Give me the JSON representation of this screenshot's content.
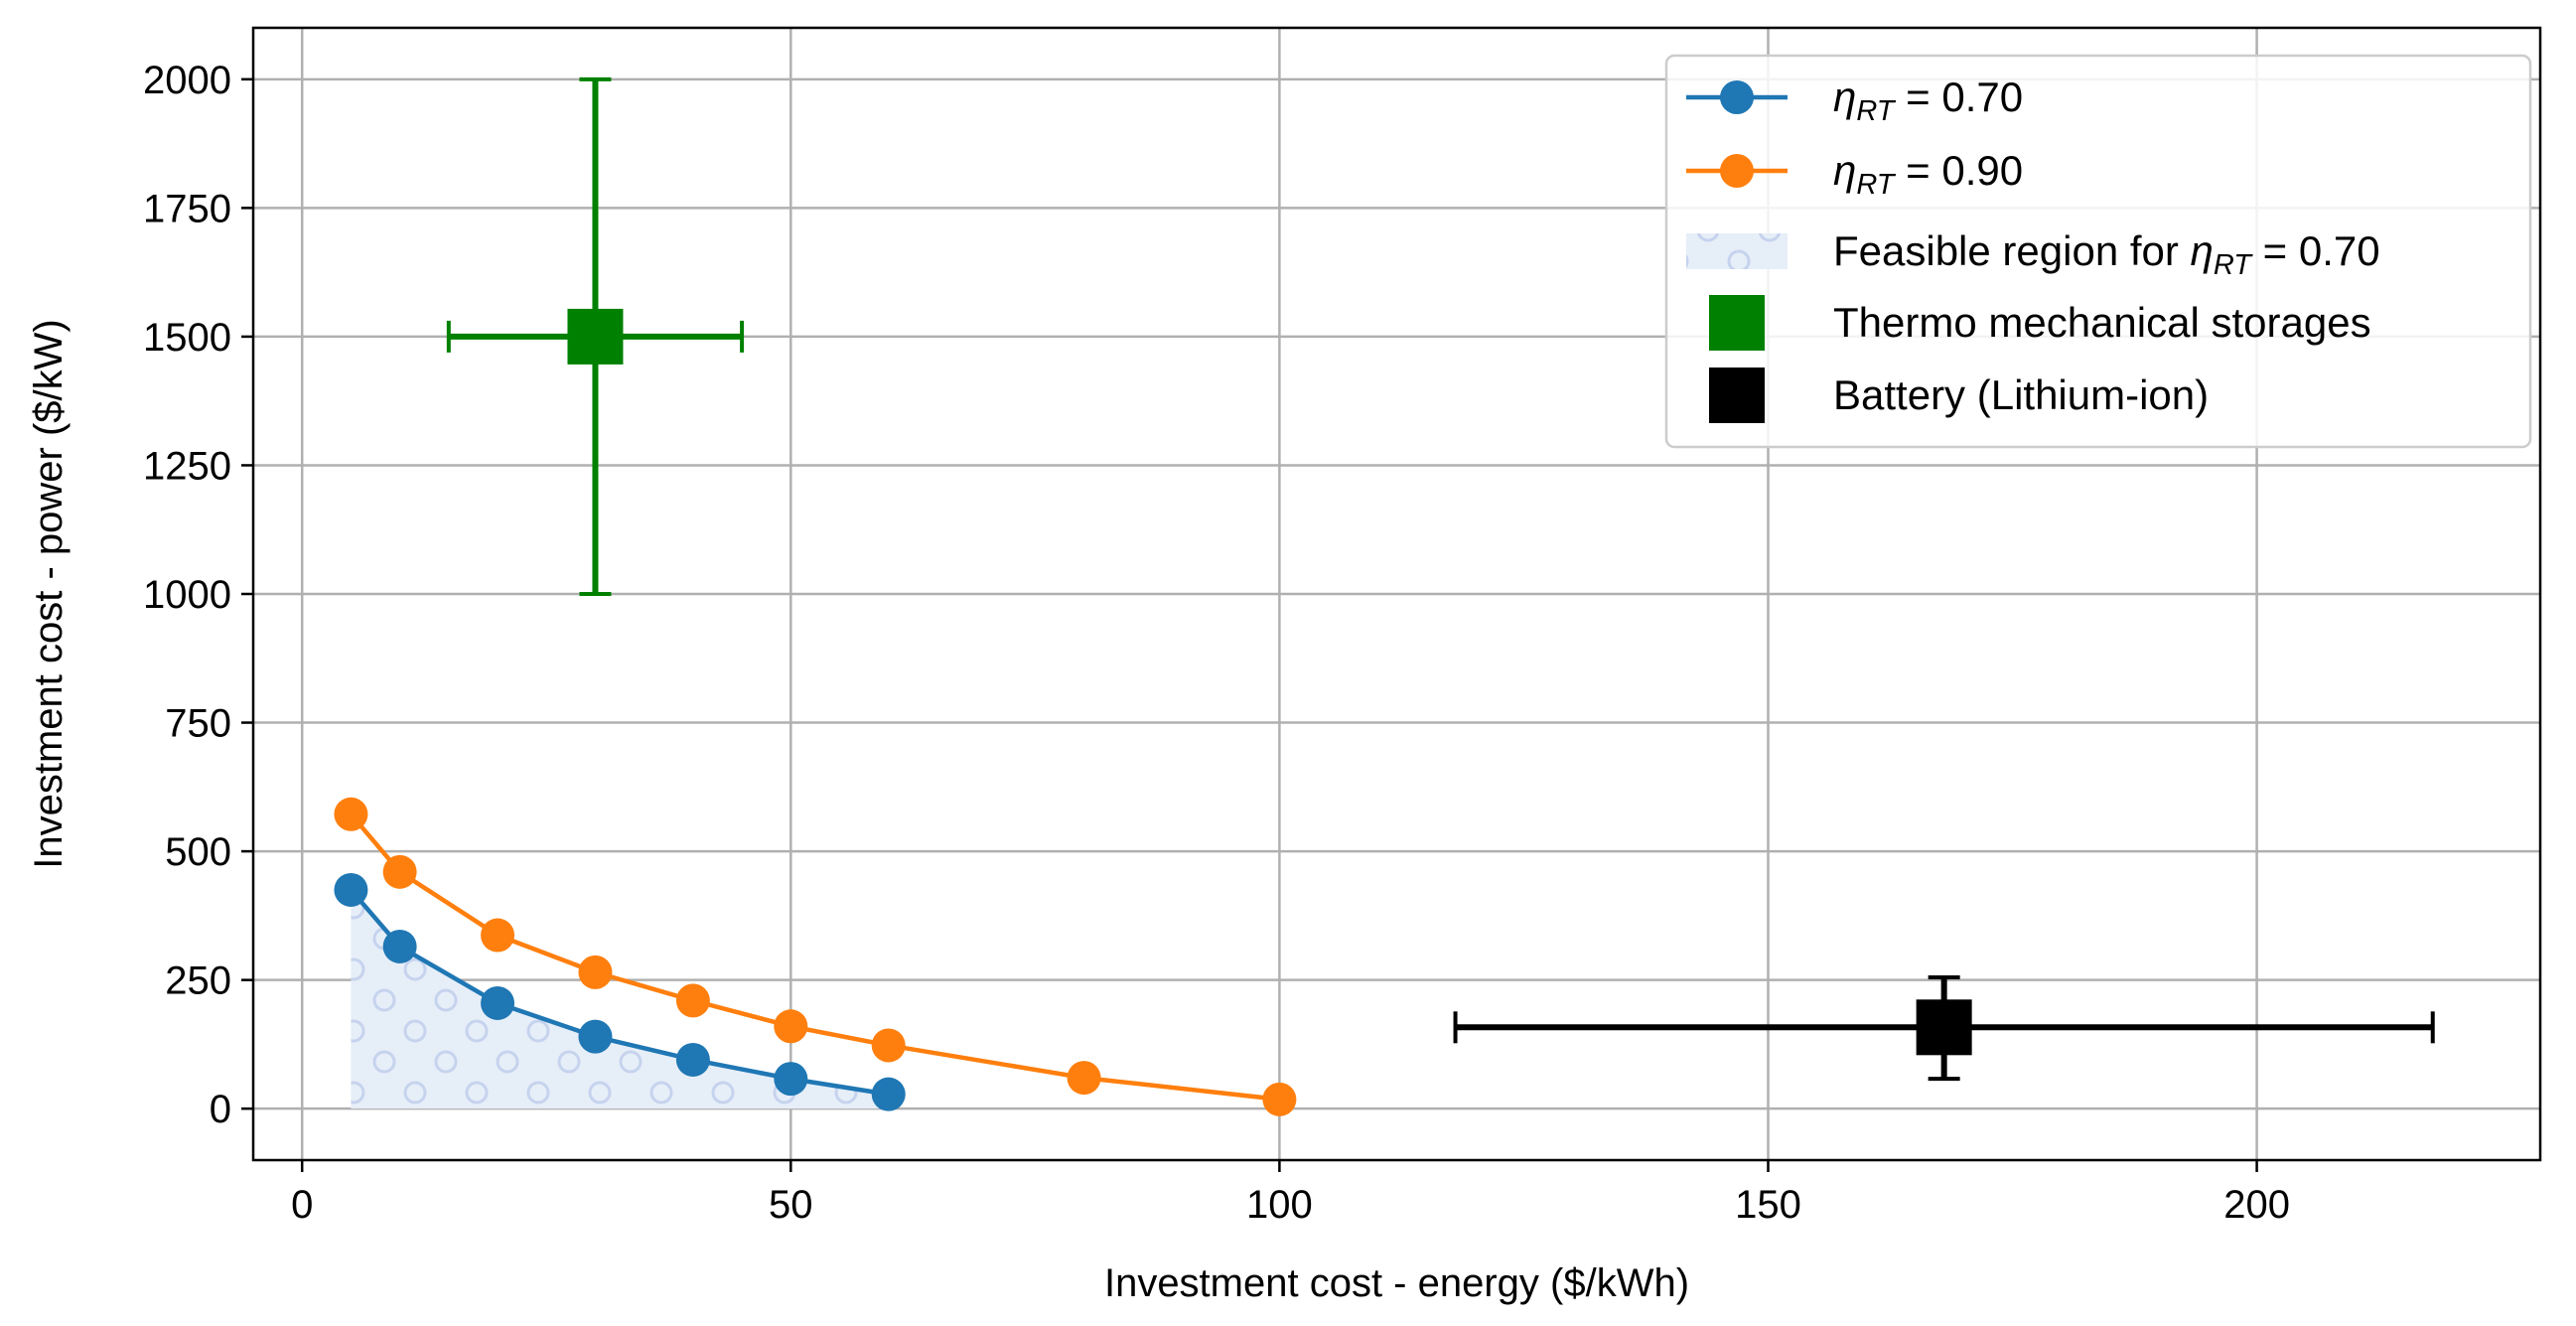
{
  "chart_data": {
    "type": "scatter",
    "title": "",
    "xlabel": "Investment cost - energy ($/kWh)",
    "ylabel": "Investment cost - power ($/kW)",
    "xlim": [
      -5,
      229
    ],
    "ylim": [
      -100,
      2100
    ],
    "xticks": [
      0,
      50,
      100,
      150,
      200
    ],
    "yticks": [
      0,
      250,
      500,
      750,
      1000,
      1250,
      1500,
      1750,
      2000
    ],
    "grid": true,
    "legend_position": "top-right",
    "series": [
      {
        "name": "η_RT = 0.70",
        "legend_label": "ηRT = 0.70",
        "color": "#1f77b4",
        "x": [
          5,
          10,
          20,
          30,
          40,
          50,
          60
        ],
        "y": [
          425,
          315,
          205,
          140,
          95,
          58,
          28
        ]
      },
      {
        "name": "η_RT = 0.90",
        "legend_label": "ηRT = 0.90",
        "color": "#ff7f0e",
        "x": [
          5,
          10,
          20,
          30,
          40,
          50,
          60,
          80,
          100
        ],
        "y": [
          572,
          460,
          337,
          265,
          210,
          160,
          123,
          60,
          18
        ]
      }
    ],
    "feasible_region": {
      "label": "Feasible region for ηRT = 0.70",
      "color": "#e6eef8",
      "pattern_color": "#c6d3ee"
    },
    "error_points": [
      {
        "name": "Thermo mechanical storages",
        "color": "#008000",
        "x": 30,
        "y": 1500,
        "x_range": [
          15,
          45
        ],
        "y_range": [
          1000,
          2000
        ]
      },
      {
        "name": "Battery (Lithium-ion)",
        "color": "#000000",
        "x": 168,
        "y": 158,
        "x_range": [
          118,
          218
        ],
        "y_range": [
          58,
          255
        ]
      }
    ]
  }
}
